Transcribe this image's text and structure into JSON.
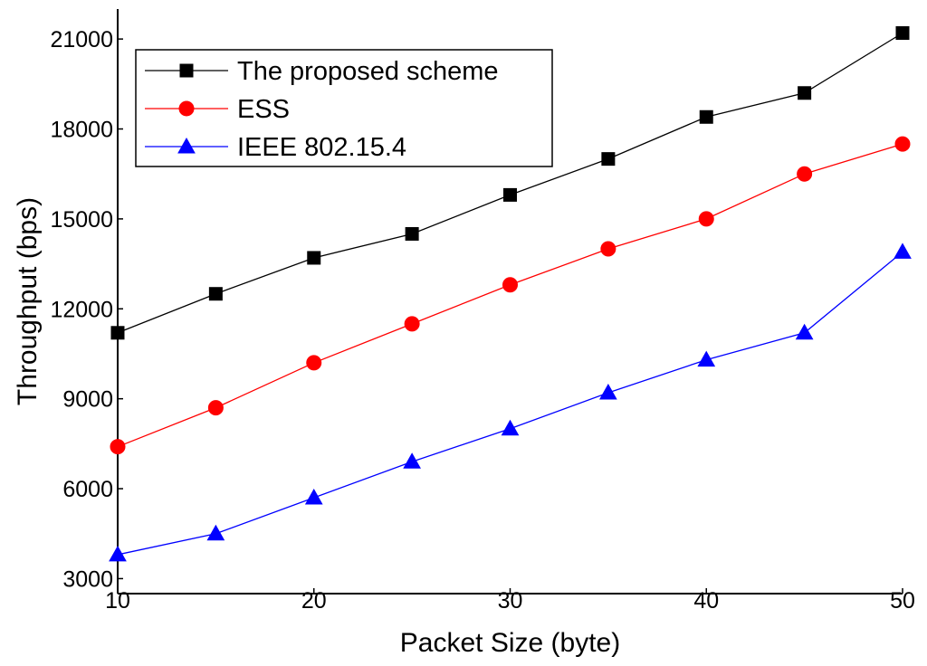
{
  "chart_data": {
    "type": "line",
    "xlabel": "Packet Size (byte)",
    "ylabel": "Throughput (bps)",
    "x": [
      10,
      15,
      20,
      25,
      30,
      35,
      40,
      45,
      50
    ],
    "xlim": [
      10,
      50
    ],
    "ylim": [
      2500,
      22000
    ],
    "xticks": [
      10,
      20,
      30,
      40,
      50
    ],
    "yticks": [
      3000,
      6000,
      9000,
      12000,
      15000,
      18000,
      21000
    ],
    "grid": false,
    "legend_position": "top-left",
    "series": [
      {
        "name": "The proposed scheme",
        "color": "#000000",
        "marker": "square",
        "values": [
          11200,
          12500,
          13700,
          14500,
          15800,
          17000,
          18400,
          19200,
          21200
        ]
      },
      {
        "name": "ESS",
        "color": "#ff0000",
        "marker": "circle",
        "values": [
          7400,
          8700,
          10200,
          11500,
          12800,
          14000,
          15000,
          16500,
          17500
        ]
      },
      {
        "name": "IEEE 802.15.4",
        "color": "#0000ff",
        "marker": "triangle",
        "values": [
          3800,
          4500,
          5700,
          6900,
          8000,
          9200,
          10300,
          11200,
          13900
        ]
      }
    ]
  }
}
